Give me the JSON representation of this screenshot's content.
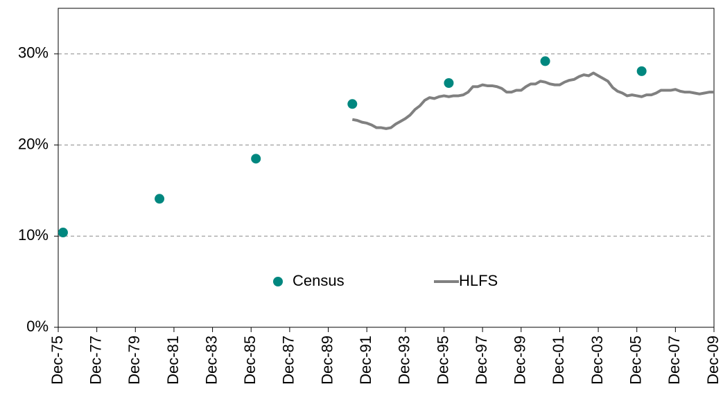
{
  "chart_data": {
    "type": "combo",
    "xlim": [
      "1975-12",
      "2009-12"
    ],
    "xticks": [
      {
        "value": "1975-12",
        "label": "Dec-75"
      },
      {
        "value": "1977-12",
        "label": "Dec-77"
      },
      {
        "value": "1979-12",
        "label": "Dec-79"
      },
      {
        "value": "1981-12",
        "label": "Dec-81"
      },
      {
        "value": "1983-12",
        "label": "Dec-83"
      },
      {
        "value": "1985-12",
        "label": "Dec-85"
      },
      {
        "value": "1987-12",
        "label": "Dec-87"
      },
      {
        "value": "1989-12",
        "label": "Dec-89"
      },
      {
        "value": "1991-12",
        "label": "Dec-91"
      },
      {
        "value": "1993-12",
        "label": "Dec-93"
      },
      {
        "value": "1995-12",
        "label": "Dec-95"
      },
      {
        "value": "1997-12",
        "label": "Dec-97"
      },
      {
        "value": "1999-12",
        "label": "Dec-99"
      },
      {
        "value": "2001-12",
        "label": "Dec-01"
      },
      {
        "value": "2003-12",
        "label": "Dec-03"
      },
      {
        "value": "2005-12",
        "label": "Dec-05"
      },
      {
        "value": "2007-12",
        "label": "Dec-07"
      },
      {
        "value": "2009-12",
        "label": "Dec-09"
      }
    ],
    "ylim": [
      0,
      35
    ],
    "yticks": [
      {
        "value": 0,
        "label": "0%"
      },
      {
        "value": 10,
        "label": "10%"
      },
      {
        "value": 20,
        "label": "20%"
      },
      {
        "value": 30,
        "label": "30%"
      }
    ],
    "grid": true,
    "legend": "center",
    "series": [
      {
        "name": "Census",
        "type": "scatter",
        "color": "#00877f",
        "x": [
          "1976-03",
          "1981-03",
          "1986-03",
          "1991-03",
          "1996-03",
          "2001-03",
          "2006-03"
        ],
        "values": [
          10.4,
          14.1,
          18.5,
          24.5,
          26.8,
          29.2,
          28.1
        ]
      },
      {
        "name": "HLFS",
        "type": "line",
        "color": "#808080",
        "x": [
          "1991-03",
          "1991-06",
          "1991-09",
          "1991-12",
          "1992-03",
          "1992-06",
          "1992-09",
          "1992-12",
          "1993-03",
          "1993-06",
          "1993-09",
          "1993-12",
          "1994-03",
          "1994-06",
          "1994-09",
          "1994-12",
          "1995-03",
          "1995-06",
          "1995-09",
          "1995-12",
          "1996-03",
          "1996-06",
          "1996-09",
          "1996-12",
          "1997-03",
          "1997-06",
          "1997-09",
          "1997-12",
          "1998-03",
          "1998-06",
          "1998-09",
          "1998-12",
          "1999-03",
          "1999-06",
          "1999-09",
          "1999-12",
          "2000-03",
          "2000-06",
          "2000-09",
          "2000-12",
          "2001-03",
          "2001-06",
          "2001-09",
          "2001-12",
          "2002-03",
          "2002-06",
          "2002-09",
          "2002-12",
          "2003-03",
          "2003-06",
          "2003-09",
          "2003-12",
          "2004-03",
          "2004-06",
          "2004-09",
          "2004-12",
          "2005-03",
          "2005-06",
          "2005-09",
          "2005-12",
          "2006-03",
          "2006-06",
          "2006-09",
          "2006-12",
          "2007-03",
          "2007-06",
          "2007-09",
          "2007-12",
          "2008-03",
          "2008-06",
          "2008-09",
          "2008-12",
          "2009-03",
          "2009-06",
          "2009-09",
          "2009-12"
        ],
        "values": [
          22.8,
          22.7,
          22.5,
          22.4,
          22.2,
          21.9,
          21.9,
          21.8,
          21.9,
          22.3,
          22.6,
          22.9,
          23.3,
          23.9,
          24.3,
          24.9,
          25.2,
          25.1,
          25.3,
          25.4,
          25.3,
          25.4,
          25.4,
          25.5,
          25.8,
          26.4,
          26.4,
          26.6,
          26.5,
          26.5,
          26.4,
          26.2,
          25.8,
          25.8,
          26.0,
          26.0,
          26.4,
          26.7,
          26.7,
          27.0,
          26.9,
          26.7,
          26.6,
          26.6,
          26.9,
          27.1,
          27.2,
          27.5,
          27.7,
          27.6,
          27.9,
          27.6,
          27.3,
          27.0,
          26.3,
          25.9,
          25.7,
          25.4,
          25.5,
          25.4,
          25.3,
          25.5,
          25.5,
          25.7,
          26.0,
          26.0,
          26.0,
          26.1,
          25.9,
          25.8,
          25.8,
          25.7,
          25.6,
          25.7,
          25.8,
          25.8
        ]
      }
    ]
  }
}
